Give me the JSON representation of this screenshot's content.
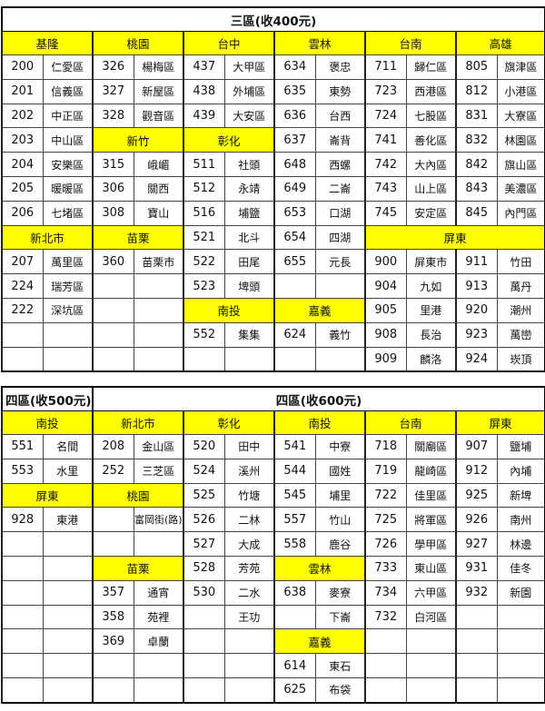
{
  "accent_color": "#ffff00",
  "table1": {
    "title": "三區(收400元)",
    "headers": [
      "基隆",
      "桃園",
      "台中",
      "雲林",
      "台南",
      "高雄"
    ],
    "rows": [
      [
        {
          "t": "200"
        },
        {
          "t": "仁愛區"
        },
        {
          "t": "326"
        },
        {
          "t": "楊梅區"
        },
        {
          "t": "437"
        },
        {
          "t": "大甲區"
        },
        {
          "t": "634"
        },
        {
          "t": "褒忠"
        },
        {
          "t": "711"
        },
        {
          "t": "歸仁區"
        },
        {
          "t": "805"
        },
        {
          "t": "旗津區"
        }
      ],
      [
        {
          "t": "201"
        },
        {
          "t": "信義區"
        },
        {
          "t": "327"
        },
        {
          "t": "新屋區"
        },
        {
          "t": "438"
        },
        {
          "t": "外埔區"
        },
        {
          "t": "635"
        },
        {
          "t": "東勢"
        },
        {
          "t": "723"
        },
        {
          "t": "西港區"
        },
        {
          "t": "812"
        },
        {
          "t": "小港區"
        }
      ],
      [
        {
          "t": "202"
        },
        {
          "t": "中正區"
        },
        {
          "t": "328"
        },
        {
          "t": "觀音區"
        },
        {
          "t": "439"
        },
        {
          "t": "大安區"
        },
        {
          "t": "636"
        },
        {
          "t": "台西"
        },
        {
          "t": "724"
        },
        {
          "t": "七股區"
        },
        {
          "t": "831"
        },
        {
          "t": "大寮區"
        }
      ],
      [
        {
          "t": "203"
        },
        {
          "t": "中山區"
        },
        {
          "h": "新竹",
          "s": 2
        },
        {
          "h": "彰化",
          "s": 2
        },
        {
          "t": "637"
        },
        {
          "t": "崙背"
        },
        {
          "t": "741"
        },
        {
          "t": "善化區"
        },
        {
          "t": "832"
        },
        {
          "t": "林園區"
        }
      ],
      [
        {
          "t": "204"
        },
        {
          "t": "安樂區"
        },
        {
          "t": "315"
        },
        {
          "t": "峨嵋"
        },
        {
          "t": "511"
        },
        {
          "t": "社頭"
        },
        {
          "t": "648"
        },
        {
          "t": "西螺"
        },
        {
          "t": "742"
        },
        {
          "t": "大內區"
        },
        {
          "t": "842"
        },
        {
          "t": "旗山區"
        }
      ],
      [
        {
          "t": "205"
        },
        {
          "t": "暖暖區"
        },
        {
          "t": "306"
        },
        {
          "t": "關西"
        },
        {
          "t": "512"
        },
        {
          "t": "永靖"
        },
        {
          "t": "649"
        },
        {
          "t": "二崙"
        },
        {
          "t": "743"
        },
        {
          "t": "山上區"
        },
        {
          "t": "843"
        },
        {
          "t": "美濃區"
        }
      ],
      [
        {
          "t": "206"
        },
        {
          "t": "七堵區"
        },
        {
          "t": "308"
        },
        {
          "t": "寶山"
        },
        {
          "t": "516"
        },
        {
          "t": "埔鹽"
        },
        {
          "t": "653"
        },
        {
          "t": "口湖"
        },
        {
          "t": "745"
        },
        {
          "t": "安定區"
        },
        {
          "t": "845"
        },
        {
          "t": "內門區"
        }
      ],
      [
        {
          "h": "新北市",
          "s": 2
        },
        {
          "h": "苗栗",
          "s": 2
        },
        {
          "t": "521"
        },
        {
          "t": "北斗"
        },
        {
          "t": "654"
        },
        {
          "t": "四湖"
        },
        {
          "h": "屏東",
          "s": 4
        }
      ],
      [
        {
          "t": "207"
        },
        {
          "t": "萬里區"
        },
        {
          "t": "360"
        },
        {
          "t": "苗栗市"
        },
        {
          "t": "522"
        },
        {
          "t": "田尾"
        },
        {
          "t": "655"
        },
        {
          "t": "元長"
        },
        {
          "t": "900"
        },
        {
          "t": "屏東市"
        },
        {
          "t": "911"
        },
        {
          "t": "竹田"
        }
      ],
      [
        {
          "t": "224"
        },
        {
          "t": "瑞芳區"
        },
        {
          "t": ""
        },
        {
          "t": ""
        },
        {
          "t": "523"
        },
        {
          "t": "埤頭"
        },
        {
          "t": ""
        },
        {
          "t": ""
        },
        {
          "t": "904"
        },
        {
          "t": "九如"
        },
        {
          "t": "913"
        },
        {
          "t": "萬丹"
        }
      ],
      [
        {
          "t": "222"
        },
        {
          "t": "深坑區"
        },
        {
          "t": ""
        },
        {
          "t": ""
        },
        {
          "h": "南投",
          "s": 2
        },
        {
          "h": "嘉義",
          "s": 2
        },
        {
          "t": "905"
        },
        {
          "t": "里港"
        },
        {
          "t": "920"
        },
        {
          "t": "潮州"
        }
      ],
      [
        {
          "t": ""
        },
        {
          "t": ""
        },
        {
          "t": ""
        },
        {
          "t": ""
        },
        {
          "t": "552"
        },
        {
          "t": "集集"
        },
        {
          "t": "624"
        },
        {
          "t": "義竹"
        },
        {
          "t": "908"
        },
        {
          "t": "長治"
        },
        {
          "t": "923"
        },
        {
          "t": "萬巒"
        }
      ],
      [
        {
          "t": ""
        },
        {
          "t": ""
        },
        {
          "t": ""
        },
        {
          "t": ""
        },
        {
          "t": ""
        },
        {
          "t": ""
        },
        {
          "t": ""
        },
        {
          "t": ""
        },
        {
          "t": "909"
        },
        {
          "t": "麟洛"
        },
        {
          "t": "924"
        },
        {
          "t": "崁頂"
        }
      ]
    ]
  },
  "table2": {
    "title_left": "四區(收500元)",
    "title_right": "四區(收600元)",
    "headers": [
      "南投",
      "新北市",
      "彰化",
      "南投",
      "台南",
      "屏東"
    ],
    "rows": [
      [
        {
          "t": "551"
        },
        {
          "t": "名間"
        },
        {
          "t": "208"
        },
        {
          "t": "金山區"
        },
        {
          "t": "520"
        },
        {
          "t": "田中"
        },
        {
          "t": "541"
        },
        {
          "t": "中寮"
        },
        {
          "t": "718"
        },
        {
          "t": "關廟區"
        },
        {
          "t": "907"
        },
        {
          "t": "鹽埔"
        }
      ],
      [
        {
          "t": "553"
        },
        {
          "t": "水里"
        },
        {
          "t": "252"
        },
        {
          "t": "三芝區"
        },
        {
          "t": "524"
        },
        {
          "t": "溪州"
        },
        {
          "t": "544"
        },
        {
          "t": "國姓"
        },
        {
          "t": "719"
        },
        {
          "t": "龍崎區"
        },
        {
          "t": "912"
        },
        {
          "t": "內埔"
        }
      ],
      [
        {
          "h": "屏東",
          "s": 2
        },
        {
          "h": "桃園",
          "s": 2
        },
        {
          "t": "525"
        },
        {
          "t": "竹塘"
        },
        {
          "t": "545"
        },
        {
          "t": "埔里"
        },
        {
          "t": "722"
        },
        {
          "t": "佳里區"
        },
        {
          "t": "925"
        },
        {
          "t": "新埤"
        }
      ],
      [
        {
          "t": "928"
        },
        {
          "t": "東港"
        },
        {
          "t": ""
        },
        {
          "t": "富岡街(路)",
          "w": 1
        },
        {
          "t": "526"
        },
        {
          "t": "二林"
        },
        {
          "t": "557"
        },
        {
          "t": "竹山"
        },
        {
          "t": "725"
        },
        {
          "t": "將軍區"
        },
        {
          "t": "926"
        },
        {
          "t": "南州"
        }
      ],
      [
        {
          "t": ""
        },
        {
          "t": ""
        },
        {
          "t": ""
        },
        {
          "t": ""
        },
        {
          "t": "527"
        },
        {
          "t": "大成"
        },
        {
          "t": "558"
        },
        {
          "t": "鹿谷"
        },
        {
          "t": "726"
        },
        {
          "t": "學甲區"
        },
        {
          "t": "927"
        },
        {
          "t": "林邊"
        }
      ],
      [
        {
          "t": ""
        },
        {
          "t": ""
        },
        {
          "h": "苗栗",
          "s": 2
        },
        {
          "t": "528"
        },
        {
          "t": "芳苑"
        },
        {
          "h": "雲林",
          "s": 2
        },
        {
          "t": "733"
        },
        {
          "t": "東山區"
        },
        {
          "t": "931"
        },
        {
          "t": "佳冬"
        }
      ],
      [
        {
          "t": ""
        },
        {
          "t": ""
        },
        {
          "t": "357"
        },
        {
          "t": "通宵"
        },
        {
          "t": "530"
        },
        {
          "t": "二水"
        },
        {
          "t": "638"
        },
        {
          "t": "麥寮"
        },
        {
          "t": "734"
        },
        {
          "t": "六甲區"
        },
        {
          "t": "932"
        },
        {
          "t": "新園"
        }
      ],
      [
        {
          "t": ""
        },
        {
          "t": ""
        },
        {
          "t": "358"
        },
        {
          "t": "苑裡"
        },
        {
          "t": ""
        },
        {
          "t": "王功"
        },
        {
          "t": ""
        },
        {
          "t": "下崙"
        },
        {
          "t": "732"
        },
        {
          "t": "白河區"
        },
        {
          "t": ""
        },
        {
          "t": ""
        }
      ],
      [
        {
          "t": ""
        },
        {
          "t": ""
        },
        {
          "t": "369"
        },
        {
          "t": "卓蘭"
        },
        {
          "t": ""
        },
        {
          "t": ""
        },
        {
          "h": "嘉義",
          "s": 2
        },
        {
          "t": ""
        },
        {
          "t": ""
        },
        {
          "t": ""
        },
        {
          "t": ""
        }
      ],
      [
        {
          "t": ""
        },
        {
          "t": ""
        },
        {
          "t": ""
        },
        {
          "t": ""
        },
        {
          "t": ""
        },
        {
          "t": ""
        },
        {
          "t": "614"
        },
        {
          "t": "東石"
        },
        {
          "t": ""
        },
        {
          "t": ""
        },
        {
          "t": ""
        },
        {
          "t": ""
        }
      ],
      [
        {
          "t": ""
        },
        {
          "t": ""
        },
        {
          "t": ""
        },
        {
          "t": ""
        },
        {
          "t": ""
        },
        {
          "t": ""
        },
        {
          "t": "625"
        },
        {
          "t": "布袋"
        },
        {
          "t": ""
        },
        {
          "t": ""
        },
        {
          "t": ""
        },
        {
          "t": ""
        }
      ]
    ]
  }
}
